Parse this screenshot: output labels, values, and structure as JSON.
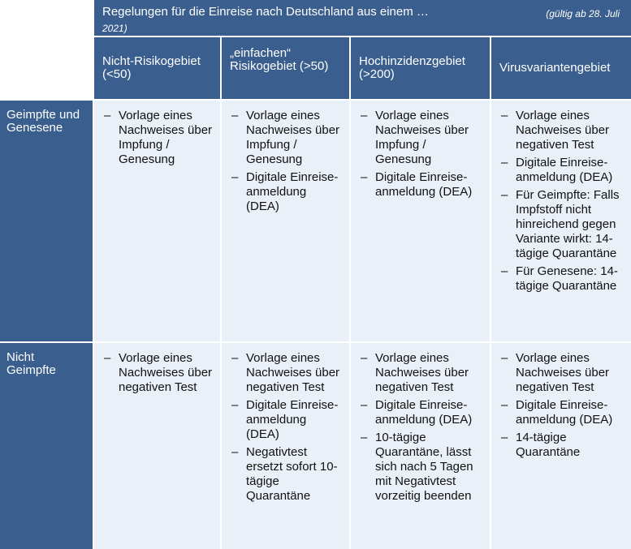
{
  "header": {
    "title": "Regelungen für die Einreise nach Deutschland aus einem …",
    "valid_from": "(gültig ab 28. Juli",
    "year": "2021)"
  },
  "columns": [
    "Nicht-Risikogebiet (<50)",
    "„einfachen“ Risikogebiet (>50)",
    "Hochinzidenzgebiet (>200)",
    "Virusvariantengebiet"
  ],
  "rows": [
    {
      "label": "Geimpfte und Genesene",
      "cells": [
        [
          "Vorlage eines Nachweises über Impfung / Genesung"
        ],
        [
          "Vorlage eines Nachweises über Impfung / Genesung",
          "Digitale Einreise-anmeldung (DEA)"
        ],
        [
          "Vorlage eines Nachweises über Impfung / Genesung",
          "Digitale Einreise-anmeldung (DEA)"
        ],
        [
          "Vorlage eines Nachweises über negativen Test",
          "Digitale Einreise-anmeldung (DEA)",
          "Für Geimpfte: Falls Impfstoff nicht hinreichend gegen Variante wirkt: 14-tägige Quarantäne",
          "Für Genesene: 14-tägige Quarantäne"
        ]
      ]
    },
    {
      "label": "Nicht Geimpfte",
      "cells": [
        [
          "Vorlage eines Nachweises über negativen Test"
        ],
        [
          "Vorlage eines Nachweises über negativen Test",
          "Digitale Einreise-anmeldung (DEA)",
          "Negativtest ersetzt sofort 10-tägige Quarantäne"
        ],
        [
          "Vorlage eines Nachweises über negativen Test",
          "Digitale Einreise-anmeldung (DEA)",
          "10-tägige Quarantäne, lässt sich nach 5 Tagen mit Negativtest vorzeitig beenden"
        ],
        [
          "Vorlage eines Nachweises über negativen Test",
          "Digitale Einreise-anmeldung (DEA)",
          "14-tägige Quarantäne"
        ]
      ]
    }
  ],
  "colors": {
    "header_blue": "#3a5f8f",
    "cell_bg": "#eaf0f7"
  }
}
